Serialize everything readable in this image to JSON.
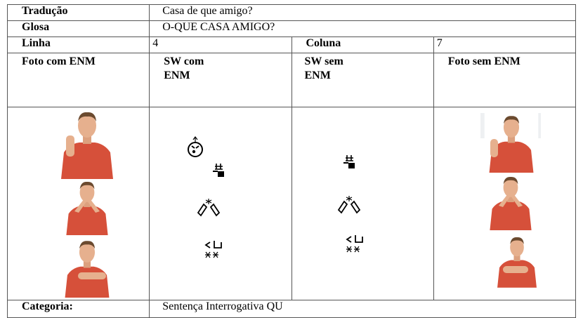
{
  "table": {
    "traducao": {
      "label": "Tradução",
      "value": "Casa de que amigo?"
    },
    "glosa": {
      "label": "Glosa",
      "value": "O-QUE CASA AMIGO?"
    },
    "linha": {
      "label": "Linha",
      "value": 4
    },
    "coluna": {
      "label": "Coluna",
      "value": 7
    },
    "headers": [
      "Foto com ENM",
      "SW com ENM",
      "SW sem ENM",
      "Foto sem ENM"
    ],
    "categoria": {
      "label": "Categoria:",
      "value": "Sentença Interrogativa QU"
    }
  }
}
